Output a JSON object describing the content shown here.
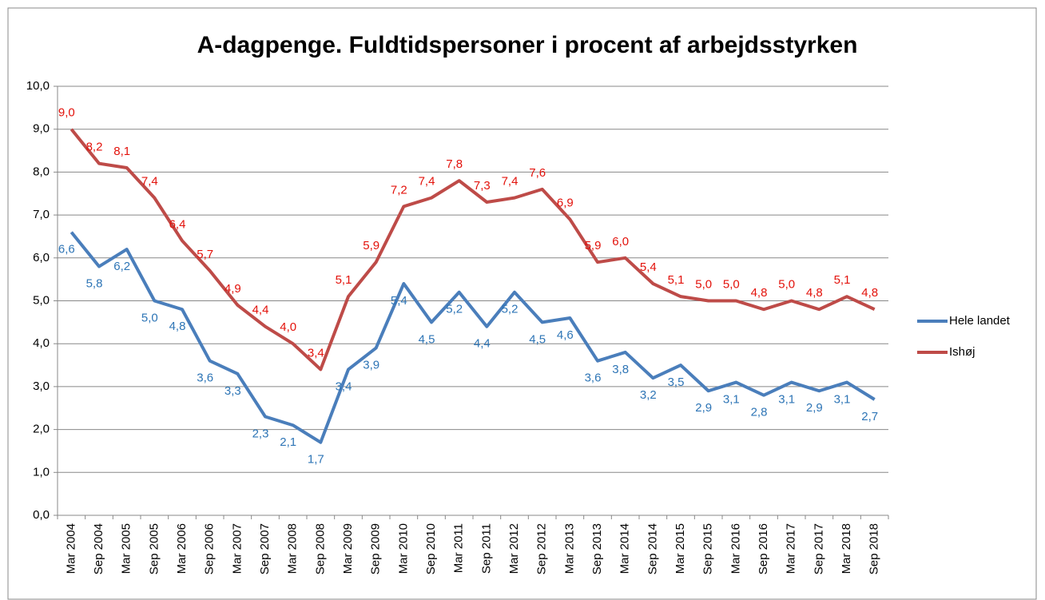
{
  "chart_data": {
    "type": "line",
    "title": "A-dagpenge. Fuldtidspersoner i procent af arbejdsstyrken",
    "categories": [
      "Mar 2004",
      "Sep 2004",
      "Mar 2005",
      "Sep 2005",
      "Mar 2006",
      "Sep 2006",
      "Mar 2007",
      "Sep 2007",
      "Mar 2008",
      "Sep 2008",
      "Mar 2009",
      "Sep 2009",
      "Mar 2010",
      "Sep 2010",
      "Mar 2011",
      "Sep 2011",
      "Mar 2012",
      "Sep 2012",
      "Mar 2013",
      "Sep 2013",
      "Mar 2014",
      "Sep 2014",
      "Mar 2015",
      "Sep 2015",
      "Mar 2016",
      "Sep 2016",
      "Mar 2017",
      "Sep 2017",
      "Mar 2018",
      "Sep 2018"
    ],
    "series": [
      {
        "name": "Hele landet",
        "color": "#4a7ebb",
        "label_color": "#2e75b6",
        "values": [
          6.6,
          5.8,
          6.2,
          5.0,
          4.8,
          3.6,
          3.3,
          2.3,
          2.1,
          1.7,
          3.4,
          3.9,
          5.4,
          4.5,
          5.2,
          4.4,
          5.2,
          4.5,
          4.6,
          3.6,
          3.8,
          3.2,
          3.5,
          2.9,
          3.1,
          2.8,
          3.1,
          2.9,
          3.1,
          2.7
        ],
        "value_labels": [
          "6,6",
          "5,8",
          "6,2",
          "5,0",
          "4,8",
          "3,6",
          "3,3",
          "2,3",
          "2,1",
          "1,7",
          "3,4",
          "3,9",
          "5,4",
          "4,5",
          "5,2",
          "4,4",
          "5,2",
          "4,5",
          "4,6",
          "3,6",
          "3,8",
          "3,2",
          "3,5",
          "2,9",
          "3,1",
          "2,8",
          "3,1",
          "2,9",
          "3,1",
          "2,7"
        ]
      },
      {
        "name": "Ishøj",
        "color": "#be4b48",
        "label_color": "#e3120b",
        "values": [
          9.0,
          8.2,
          8.1,
          7.4,
          6.4,
          5.7,
          4.9,
          4.4,
          4.0,
          3.4,
          5.1,
          5.9,
          7.2,
          7.4,
          7.8,
          7.3,
          7.4,
          7.6,
          6.9,
          5.9,
          6.0,
          5.4,
          5.1,
          5.0,
          5.0,
          4.8,
          5.0,
          4.8,
          5.1,
          4.8
        ],
        "value_labels": [
          "9,0",
          "8,2",
          "8,1",
          "7,4",
          "6,4",
          "5,7",
          "4,9",
          "4,4",
          "4,0",
          "3,4",
          "5,1",
          "5,9",
          "7,2",
          "7,4",
          "7,8",
          "7,3",
          "7,4",
          "7,6",
          "6,9",
          "5,9",
          "6,0",
          "5,4",
          "5,1",
          "5,0",
          "5,0",
          "4,8",
          "5,0",
          "4,8",
          "5,1",
          "4,8"
        ]
      }
    ],
    "ylim": [
      0,
      10
    ],
    "yticks": [
      {
        "value": 0,
        "label": "0,0"
      },
      {
        "value": 1,
        "label": "1,0"
      },
      {
        "value": 2,
        "label": "2,0"
      },
      {
        "value": 3,
        "label": "3,0"
      },
      {
        "value": 4,
        "label": "4,0"
      },
      {
        "value": 5,
        "label": "5,0"
      },
      {
        "value": 6,
        "label": "6,0"
      },
      {
        "value": 7,
        "label": "7,0"
      },
      {
        "value": 8,
        "label": "8,0"
      },
      {
        "value": 9,
        "label": "9,0"
      },
      {
        "value": 10,
        "label": "10,0"
      }
    ],
    "grid": true,
    "legend": "right"
  }
}
